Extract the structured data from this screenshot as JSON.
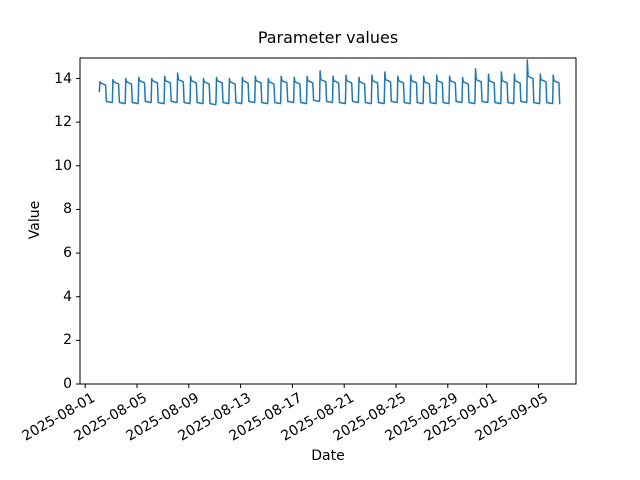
{
  "figure": {
    "title": "Parameter values",
    "xlabel": "Date",
    "ylabel": "Value"
  },
  "chart_data": {
    "type": "line",
    "title": "Parameter values",
    "xlabel": "Date",
    "ylabel": "Value",
    "background": "#ffffff",
    "grid": false,
    "legend": null,
    "line_color": "#1f77b4",
    "axis_color": "#000000",
    "ylim": [
      0,
      14.94
    ],
    "y_ticks": [
      0,
      2,
      4,
      6,
      8,
      10,
      12,
      14
    ],
    "xlim_days": [
      -0.4,
      37.9
    ],
    "x_ticks": [
      {
        "label": "2025-08-01",
        "day": 0
      },
      {
        "label": "2025-08-05",
        "day": 4
      },
      {
        "label": "2025-08-09",
        "day": 8
      },
      {
        "label": "2025-08-13",
        "day": 12
      },
      {
        "label": "2025-08-17",
        "day": 16
      },
      {
        "label": "2025-08-21",
        "day": 20
      },
      {
        "label": "2025-08-25",
        "day": 24
      },
      {
        "label": "2025-08-29",
        "day": 28
      },
      {
        "label": "2025-09-01",
        "day": 31
      },
      {
        "label": "2025-09-05",
        "day": 35
      }
    ],
    "series": [
      {
        "name": "parameter",
        "pattern": "daily square-wave: steep rise to a brief leading spike, high plateau about half the day, then a low plateau until the next day's rise",
        "start_day": 1.1,
        "start_value": 13.4,
        "end_day": 36.7,
        "daily_cycles": [
          {
            "date": "2025-08-02",
            "spike": 13.85,
            "high": 13.8,
            "low": 12.95
          },
          {
            "date": "2025-08-03",
            "spike": 13.95,
            "high": 13.85,
            "low": 12.9
          },
          {
            "date": "2025-08-04",
            "spike": 14.0,
            "high": 13.85,
            "low": 12.9
          },
          {
            "date": "2025-08-05",
            "spike": 14.05,
            "high": 13.9,
            "low": 12.95
          },
          {
            "date": "2025-08-06",
            "spike": 14.0,
            "high": 13.9,
            "low": 12.9
          },
          {
            "date": "2025-08-07",
            "spike": 14.1,
            "high": 13.9,
            "low": 12.95
          },
          {
            "date": "2025-08-08",
            "spike": 14.25,
            "high": 13.95,
            "low": 12.9
          },
          {
            "date": "2025-08-09",
            "spike": 14.1,
            "high": 13.9,
            "low": 12.9
          },
          {
            "date": "2025-08-10",
            "spike": 14.0,
            "high": 13.85,
            "low": 12.85
          },
          {
            "date": "2025-08-11",
            "spike": 14.05,
            "high": 13.9,
            "low": 12.9
          },
          {
            "date": "2025-08-12",
            "spike": 14.0,
            "high": 13.85,
            "low": 12.9
          },
          {
            "date": "2025-08-13",
            "spike": 14.05,
            "high": 13.9,
            "low": 12.95
          },
          {
            "date": "2025-08-14",
            "spike": 14.1,
            "high": 13.9,
            "low": 12.9
          },
          {
            "date": "2025-08-15",
            "spike": 14.0,
            "high": 13.85,
            "low": 12.9
          },
          {
            "date": "2025-08-16",
            "spike": 14.1,
            "high": 13.9,
            "low": 12.95
          },
          {
            "date": "2025-08-17",
            "spike": 14.05,
            "high": 13.85,
            "low": 12.9
          },
          {
            "date": "2025-08-18",
            "spike": 14.1,
            "high": 13.9,
            "low": 13.0
          },
          {
            "date": "2025-08-19",
            "spike": 14.35,
            "high": 13.95,
            "low": 12.95
          },
          {
            "date": "2025-08-20",
            "spike": 14.1,
            "high": 13.9,
            "low": 12.9
          },
          {
            "date": "2025-08-21",
            "spike": 14.15,
            "high": 13.9,
            "low": 12.95
          },
          {
            "date": "2025-08-22",
            "spike": 14.05,
            "high": 13.85,
            "low": 12.9
          },
          {
            "date": "2025-08-23",
            "spike": 14.15,
            "high": 13.9,
            "low": 12.9
          },
          {
            "date": "2025-08-24",
            "spike": 14.3,
            "high": 13.95,
            "low": 12.95
          },
          {
            "date": "2025-08-25",
            "spike": 14.1,
            "high": 13.9,
            "low": 12.9
          },
          {
            "date": "2025-08-26",
            "spike": 14.15,
            "high": 13.9,
            "low": 12.9
          },
          {
            "date": "2025-08-27",
            "spike": 14.1,
            "high": 13.85,
            "low": 12.9
          },
          {
            "date": "2025-08-28",
            "spike": 14.15,
            "high": 13.9,
            "low": 12.9
          },
          {
            "date": "2025-08-29",
            "spike": 14.1,
            "high": 13.9,
            "low": 12.95
          },
          {
            "date": "2025-08-30",
            "spike": 14.05,
            "high": 13.85,
            "low": 12.9
          },
          {
            "date": "2025-08-31",
            "spike": 14.45,
            "high": 13.95,
            "low": 12.95
          },
          {
            "date": "2025-09-01",
            "spike": 14.2,
            "high": 13.9,
            "low": 12.9
          },
          {
            "date": "2025-09-02",
            "spike": 14.3,
            "high": 13.9,
            "low": 12.9
          },
          {
            "date": "2025-09-03",
            "spike": 14.2,
            "high": 13.9,
            "low": 12.95
          },
          {
            "date": "2025-09-04",
            "spike": 14.85,
            "high": 14.1,
            "low": 12.9
          },
          {
            "date": "2025-09-05",
            "spike": 14.2,
            "high": 13.95,
            "low": 12.9
          },
          {
            "date": "2025-09-06",
            "spike": 14.15,
            "high": 13.9,
            "low": 12.85
          }
        ]
      }
    ]
  }
}
